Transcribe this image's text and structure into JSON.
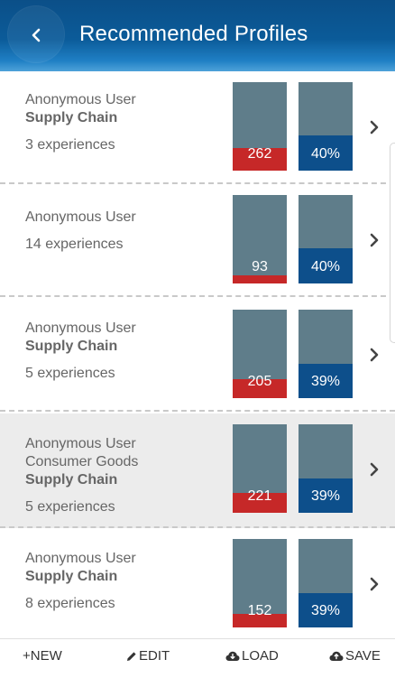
{
  "header": {
    "title": "Recommended Profiles",
    "back_icon": "chevron-left-icon"
  },
  "colors": {
    "header": "#0b5b99",
    "score_fill": "#c62828",
    "match_fill": "#0d4f8b",
    "bar_bg": "#5f7d8a",
    "selected_row": "#ececec"
  },
  "profiles": [
    {
      "lines": [
        "Anonymous User"
      ],
      "bold": "Supply Chain",
      "experiences": "3 experiences",
      "score_label": "262",
      "score_fill": 0.26,
      "match_label": "40%",
      "match_fill": 0.4,
      "selected": false
    },
    {
      "lines": [
        "Anonymous User"
      ],
      "bold": "",
      "experiences": "14 experiences",
      "score_label": "93",
      "score_fill": 0.09,
      "match_label": "40%",
      "match_fill": 0.4,
      "selected": false
    },
    {
      "lines": [
        "Anonymous User"
      ],
      "bold": "Supply Chain",
      "experiences": "5 experiences",
      "score_label": "205",
      "score_fill": 0.21,
      "match_label": "39%",
      "match_fill": 0.39,
      "selected": false
    },
    {
      "lines": [
        "Anonymous User",
        "Consumer Goods"
      ],
      "bold": "Supply Chain",
      "experiences": "5 experiences",
      "score_label": "221",
      "score_fill": 0.22,
      "match_label": "39%",
      "match_fill": 0.39,
      "selected": true
    },
    {
      "lines": [
        "Anonymous User"
      ],
      "bold": "Supply Chain",
      "experiences": "8 experiences",
      "score_label": "152",
      "score_fill": 0.15,
      "match_label": "39%",
      "match_fill": 0.39,
      "selected": false
    }
  ],
  "toolbar": {
    "new_label": "+NEW",
    "edit_label": "EDIT",
    "load_label": "LOAD",
    "save_label": "SAVE",
    "edit_icon": "pencil-icon",
    "load_icon": "cloud-download-icon",
    "save_icon": "cloud-upload-icon"
  }
}
